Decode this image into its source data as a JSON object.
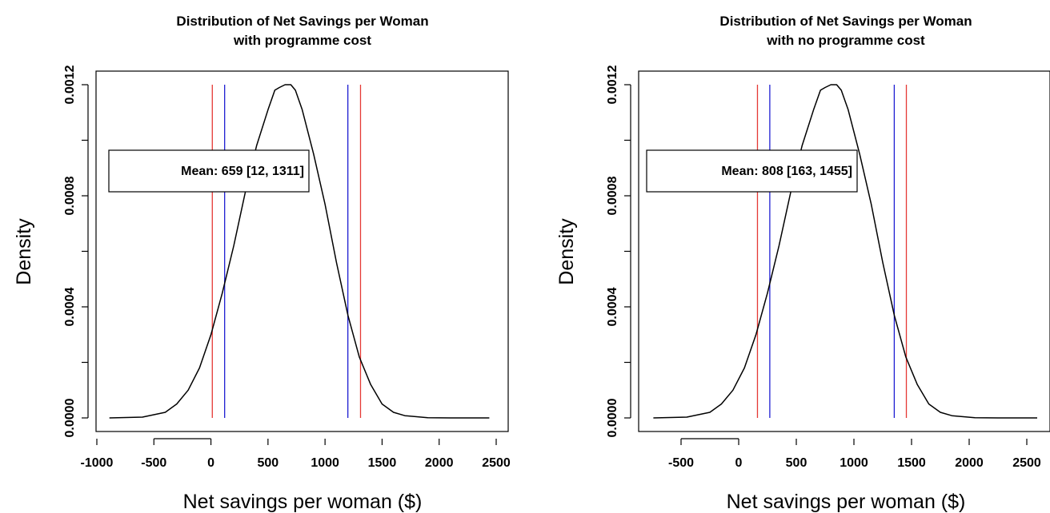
{
  "chart_data": [
    {
      "type": "line",
      "title": "Distribution of Net Savings per Woman",
      "subtitle": "with programme cost",
      "xlabel": "Net savings per woman ($)",
      "ylabel": "Density",
      "xlim": [
        -1000,
        2500
      ],
      "ylim": [
        0,
        0.0012
      ],
      "xticks": [
        "-1000",
        "-500",
        "0",
        "500",
        "1000",
        "1500",
        "2000",
        "2500"
      ],
      "yticks": [
        "0.0000",
        "0.0004",
        "0.0008",
        "0.0012"
      ],
      "legend_text": "Mean: 659 [12, 1311]",
      "legend_position": "top-left",
      "grid": false,
      "density_curve": {
        "color": "#000000",
        "x": [
          -890,
          -600,
          -400,
          -300,
          -200,
          -100,
          0,
          100,
          200,
          300,
          400,
          500,
          560,
          600,
          650,
          700,
          740,
          800,
          900,
          1000,
          1100,
          1200,
          1300,
          1400,
          1500,
          1600,
          1700,
          1900,
          2100,
          2440
        ],
        "y": [
          0.0,
          3e-06,
          2e-05,
          5e-05,
          0.0001,
          0.00018,
          0.0003,
          0.00045,
          0.00062,
          0.00081,
          0.00098,
          0.00111,
          0.00118,
          0.00119,
          0.0012,
          0.0012,
          0.00118,
          0.00111,
          0.00095,
          0.00077,
          0.00056,
          0.00037,
          0.00022,
          0.00012,
          5e-05,
          2e-05,
          8e-06,
          1e-06,
          0.0,
          0.0
        ]
      },
      "vertical_lines": [
        {
          "x": 12,
          "color": "#e53935"
        },
        {
          "x": 120,
          "color": "#1e1ed2"
        },
        {
          "x": 1200,
          "color": "#1e1ed2"
        },
        {
          "x": 1311,
          "color": "#e53935"
        }
      ]
    },
    {
      "type": "line",
      "title": "Distribution of Net Savings per Woman",
      "subtitle": "with no programme cost",
      "xlabel": "Net savings per woman ($)",
      "ylabel": "Density",
      "xlim": [
        -750,
        2600
      ],
      "ylim": [
        0,
        0.0012
      ],
      "xticks": [
        "-500",
        "0",
        "500",
        "1000",
        "1500",
        "2000",
        "2500"
      ],
      "yticks": [
        "0.0000",
        "0.0004",
        "0.0008",
        "0.0012"
      ],
      "legend_text": "Mean: 808 [163, 1455]",
      "legend_position": "top-left",
      "grid": false,
      "density_curve": {
        "color": "#000000",
        "x": [
          -740,
          -450,
          -250,
          -150,
          -50,
          50,
          150,
          250,
          350,
          450,
          550,
          650,
          710,
          750,
          800,
          850,
          890,
          950,
          1050,
          1150,
          1250,
          1350,
          1450,
          1550,
          1650,
          1750,
          1850,
          2050,
          2250,
          2590
        ],
        "y": [
          0.0,
          3e-06,
          2e-05,
          5e-05,
          0.0001,
          0.00018,
          0.0003,
          0.00045,
          0.00062,
          0.00081,
          0.00098,
          0.00111,
          0.00118,
          0.00119,
          0.0012,
          0.0012,
          0.00118,
          0.00111,
          0.00095,
          0.00077,
          0.00056,
          0.00037,
          0.00022,
          0.00012,
          5e-05,
          2e-05,
          8e-06,
          1e-06,
          0.0,
          0.0
        ]
      },
      "vertical_lines": [
        {
          "x": 163,
          "color": "#e53935"
        },
        {
          "x": 270,
          "color": "#1e1ed2"
        },
        {
          "x": 1350,
          "color": "#1e1ed2"
        },
        {
          "x": 1455,
          "color": "#e53935"
        }
      ]
    }
  ]
}
